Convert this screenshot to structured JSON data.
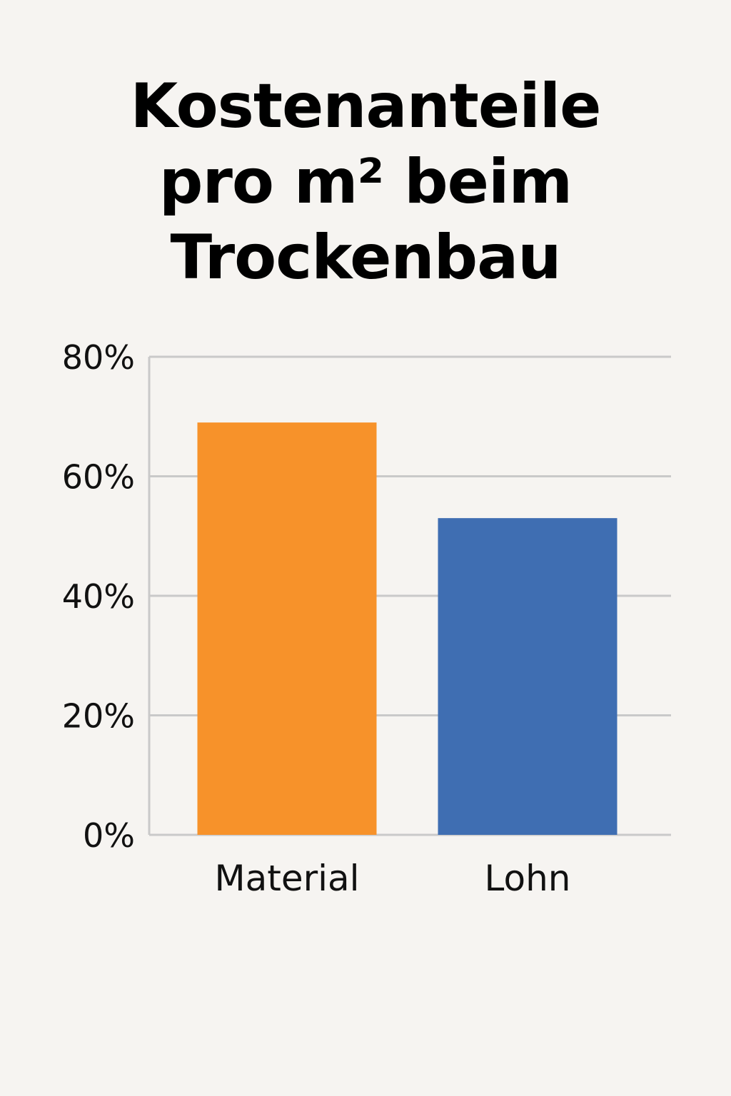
{
  "title_lines": [
    "Kostenanteile",
    "pro m² beim",
    "Trockenbau"
  ],
  "chart_data": {
    "type": "bar",
    "title": "Kostenanteile pro m² beim Trockenbau",
    "categories": [
      "Material",
      "Lohn"
    ],
    "values": [
      69,
      53
    ],
    "colors": [
      "#f7922a",
      "#3f6eb2"
    ],
    "ylim": [
      0,
      80
    ],
    "yticks": [
      0,
      20,
      40,
      60,
      80
    ],
    "ytick_labels": [
      "0%",
      "20%",
      "40%",
      "60%",
      "80%"
    ],
    "unit": "%",
    "grid": true,
    "legend": "none",
    "xlabel": "",
    "ylabel": ""
  }
}
